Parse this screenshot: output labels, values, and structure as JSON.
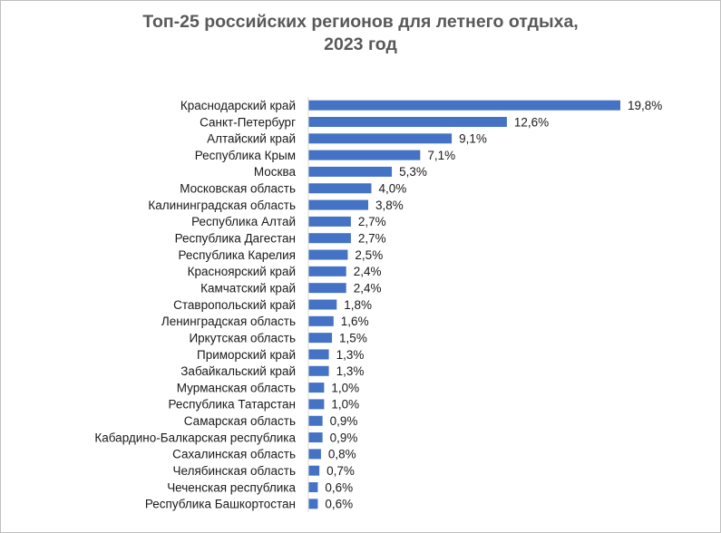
{
  "chart_data": {
    "type": "bar",
    "orientation": "horizontal",
    "title_lines": [
      "Топ-25 российских регионов для летнего отдыха,",
      "2023 год"
    ],
    "categories": [
      "Краснодарский край",
      "Санкт-Петербург",
      "Алтайский край",
      "Республика Крым",
      "Москва",
      "Московская область",
      "Калининградская область",
      "Республика Алтай",
      "Республика Дагестан",
      "Республика Карелия",
      "Красноярский край",
      "Камчатский край",
      "Ставропольский край",
      "Ленинградская область",
      "Иркутская область",
      "Приморский край",
      "Забайкальский край",
      "Мурманская область",
      "Республика Татарстан",
      "Самарская область",
      "Кабардино-Балкарская республика",
      "Сахалинская область",
      "Челябинская область",
      "Чеченская республика",
      "Республика Башкортостан"
    ],
    "values": [
      19.8,
      12.6,
      9.1,
      7.1,
      5.3,
      4.0,
      3.8,
      2.7,
      2.7,
      2.5,
      2.4,
      2.4,
      1.8,
      1.6,
      1.5,
      1.3,
      1.3,
      1.0,
      1.0,
      0.9,
      0.9,
      0.8,
      0.7,
      0.6,
      0.6
    ],
    "value_labels": [
      "19,8%",
      "12,6%",
      "9,1%",
      "7,1%",
      "5,3%",
      "4,0%",
      "3,8%",
      "2,7%",
      "2,7%",
      "2,5%",
      "2,4%",
      "2,4%",
      "1,8%",
      "1,6%",
      "1,5%",
      "1,3%",
      "1,3%",
      "1,0%",
      "1,0%",
      "0,9%",
      "0,9%",
      "0,8%",
      "0,7%",
      "0,6%",
      "0,6%"
    ],
    "unit": "%",
    "xlim": [
      0,
      20
    ],
    "grid": false,
    "legend": "none",
    "bar_color": "#4472c4",
    "axis_color": "#d9d9d9"
  }
}
